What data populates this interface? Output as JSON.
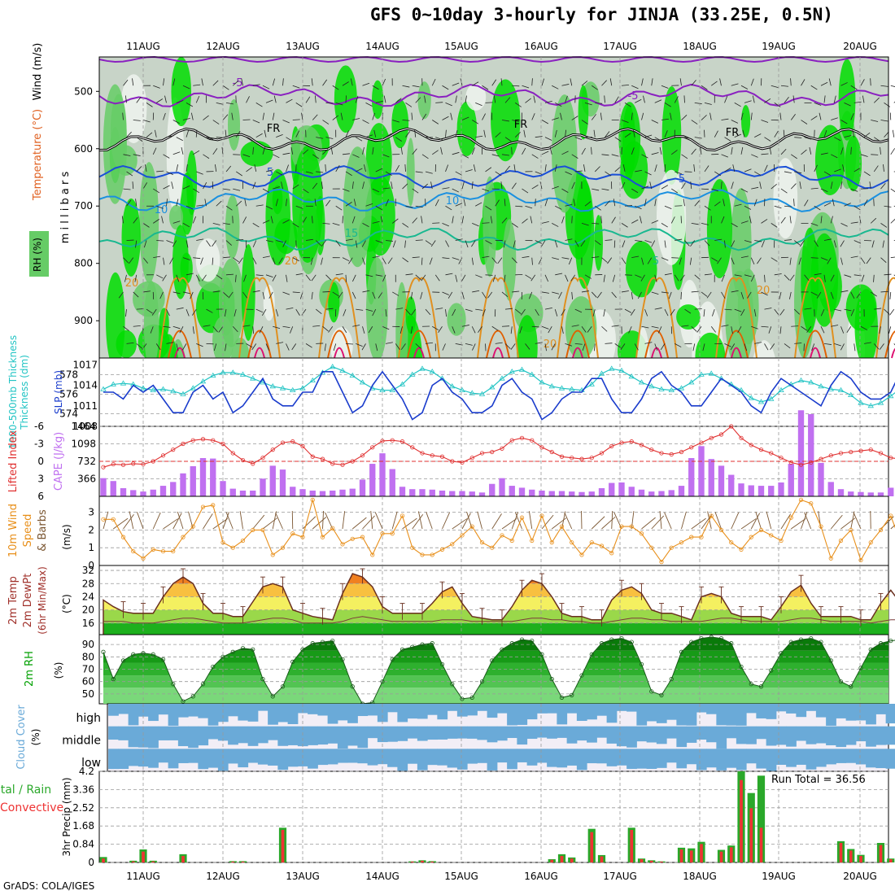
{
  "title": "GFS 0~10day 3-hourly for JINJA (33.25E, 0.5N)",
  "footer": "GrADS: COLA/IGES",
  "dates": [
    "11AUG",
    "12AUG",
    "13AUG",
    "14AUG",
    "15AUG",
    "16AUG",
    "17AUG",
    "18AUG",
    "19AUG",
    "20AUG"
  ],
  "colors": {
    "rh_green": "#00dd00",
    "rh_mid": "#66cc66",
    "rh_light": "#c8d4c8",
    "slp": "#1a3ccc",
    "thickness": "#22c4c4",
    "li": "#e03030",
    "cape": "#c070f0",
    "wind10": "#e88f1a",
    "barb": "#7a5530",
    "rh2m": "#00a000",
    "cloud": "#6aaad8",
    "cloud_clear": "#f2eef6",
    "precip_total": "#2aa82a",
    "precip_conv": "#ee3333"
  },
  "chart_data": [
    {
      "type": "heatmap",
      "panel": "upper-air",
      "ylabel": "(millibars)",
      "legend_labels": [
        "RH (%)",
        "Temperature (°C)",
        "Wind (m/s)"
      ],
      "ylim": [
        440,
        965
      ],
      "yticks": [
        500,
        600,
        700,
        800,
        900
      ],
      "contour_labels": [
        "-5",
        "FR",
        "5",
        "10",
        "15",
        "20"
      ],
      "isotherms": {
        "-5": 508,
        "FR": 585,
        "5": 650,
        "10": 690,
        "15": 757
      }
    },
    {
      "type": "line",
      "panel": "slp-thickness",
      "ylabel": "1000-500mb Thickness (dm)",
      "ylabel2": "SLP (mb)",
      "yticks_left": [
        574,
        576,
        578
      ],
      "yticks_right": [
        1008,
        1011,
        1014,
        1017
      ],
      "ylim_left": [
        572.7,
        579.7
      ],
      "ylim_right": [
        1008,
        1018
      ],
      "slp": [
        1013,
        1013,
        1012,
        1014,
        1013,
        1014,
        1012,
        1010,
        1010,
        1013,
        1014,
        1012,
        1013,
        1010,
        1011,
        1013,
        1015,
        1012,
        1011,
        1011,
        1013,
        1013,
        1016,
        1016,
        1013,
        1010,
        1011,
        1014,
        1016,
        1014,
        1012,
        1009,
        1010,
        1014,
        1015,
        1013,
        1012,
        1010,
        1010,
        1011,
        1014,
        1015,
        1013,
        1012,
        1009,
        1010,
        1012,
        1013,
        1013,
        1015,
        1015,
        1012,
        1010,
        1010,
        1012,
        1015,
        1016,
        1014,
        1013,
        1011,
        1011,
        1013,
        1015,
        1014,
        1013,
        1011,
        1010,
        1013,
        1015,
        1014,
        1013,
        1012,
        1011,
        1014,
        1016,
        1015,
        1013,
        1012,
        1012,
        1013,
        1016,
        1015,
        1014,
        1012,
        1013,
        1015,
        1017,
        1015,
        1013,
        1013,
        1014,
        1016,
        1017,
        1015,
        1014,
        1015,
        1016,
        1017
      ],
      "thickness": [
        576.5,
        577.0,
        577.1,
        577.0,
        576.6,
        576.4,
        576.5,
        576.3,
        576.0,
        576.6,
        577.3,
        577.9,
        578.2,
        578.2,
        578.0,
        577.6,
        577.2,
        576.8,
        576.6,
        576.4,
        576.6,
        577.4,
        578.2,
        578.8,
        578.4,
        577.9,
        577.2,
        576.6,
        576.4,
        576.4,
        577.0,
        578.0,
        578.6,
        578.3,
        577.6,
        576.8,
        576.4,
        576.1,
        576.0,
        576.7,
        577.6,
        578.3,
        578.5,
        578.0,
        577.2,
        576.8,
        576.6,
        576.5,
        576.4,
        577.0,
        578.1,
        578.6,
        578.4,
        577.8,
        577.2,
        576.8,
        576.5,
        576.4,
        576.6,
        577.2,
        578.0,
        578.1,
        577.6,
        577.0,
        576.4,
        575.6,
        575.2,
        575.5,
        576.4,
        577.0,
        577.4,
        577.2,
        576.8,
        576.5,
        576.4,
        575.9,
        575.1,
        574.8,
        575.1,
        575.8,
        576.6,
        577.0,
        576.6,
        575.8,
        575.1,
        574.5,
        574.2,
        574.1,
        574.3,
        574.8,
        575.3,
        575.8,
        575.9,
        575.6,
        575.0,
        574.2,
        573.6,
        573.2
      ]
    },
    {
      "type": "bar",
      "panel": "stability",
      "ylabel": "Lifted Index",
      "ylabel2": "CAPE (J/kg)",
      "yticks_left": [
        -6,
        -3,
        0,
        3,
        6
      ],
      "yticks_right": [
        366,
        732,
        1098,
        1464
      ],
      "ylim_left": [
        6,
        -6
      ],
      "ylim_right": [
        0,
        1464
      ],
      "cape": [
        380,
        320,
        170,
        130,
        100,
        140,
        220,
        300,
        480,
        630,
        800,
        790,
        320,
        160,
        120,
        120,
        370,
        640,
        560,
        200,
        150,
        120,
        110,
        120,
        140,
        160,
        350,
        680,
        900,
        570,
        200,
        150,
        150,
        140,
        120,
        110,
        110,
        100,
        80,
        260,
        380,
        220,
        180,
        140,
        120,
        110,
        110,
        100,
        90,
        100,
        170,
        280,
        290,
        200,
        140,
        100,
        110,
        130,
        220,
        800,
        1050,
        780,
        640,
        450,
        270,
        230,
        220,
        220,
        290,
        680,
        1800,
        1720,
        700,
        300,
        150,
        100,
        90,
        80,
        80,
        180,
        280,
        360,
        360,
        300,
        280,
        260,
        210,
        160,
        230,
        300,
        250,
        210,
        180,
        230,
        200,
        130,
        180,
        210
      ],
      "li": [
        1.0,
        0.5,
        0.6,
        0.4,
        0.5,
        0.0,
        -1.0,
        -2.0,
        -3.0,
        -3.6,
        -3.8,
        -3.6,
        -3.0,
        -1.4,
        -0.2,
        0.4,
        -0.6,
        -2.0,
        -3.2,
        -3.4,
        -2.6,
        -0.8,
        -0.4,
        0.4,
        0.6,
        0.0,
        -1.0,
        -2.4,
        -3.5,
        -3.6,
        -3.4,
        -2.4,
        -1.4,
        -1.0,
        -0.8,
        0.0,
        0.2,
        -0.6,
        -1.4,
        -1.6,
        -2.2,
        -3.6,
        -4.0,
        -3.6,
        -2.4,
        -1.6,
        -0.8,
        -0.6,
        -0.4,
        -0.6,
        -1.4,
        -2.6,
        -3.2,
        -3.4,
        -2.8,
        -2.0,
        -1.4,
        -1.2,
        -1.6,
        -2.4,
        -3.2,
        -4.0,
        -4.6,
        -6.0,
        -4.0,
        -2.8,
        -2.0,
        -1.4,
        -0.6,
        0.2,
        0.6,
        0.2,
        -0.4,
        -1.0,
        -1.4,
        -1.6,
        -1.8,
        -2.0,
        -1.4,
        -0.6,
        -0.4,
        -0.2,
        -0.8,
        -1.6,
        -2.2,
        -2.6,
        -2.4,
        -2.0,
        -1.6,
        -1.4,
        -1.2,
        -1.4,
        -1.8,
        -2.2,
        -1.4,
        -0.6,
        -1.6,
        -1.8
      ]
    },
    {
      "type": "line",
      "panel": "wind10m",
      "ylabel": "10m Wind Speed & Barbs (m/s)",
      "yticks": [
        0,
        1,
        2,
        3
      ],
      "ylim": [
        0,
        3.9
      ],
      "speed": [
        2.6,
        2.6,
        1.6,
        0.8,
        0.4,
        0.9,
        0.8,
        0.8,
        1.6,
        2.2,
        3.3,
        3.4,
        1.3,
        1.0,
        1.4,
        2.0,
        2.0,
        0.6,
        1.0,
        1.8,
        1.6,
        3.7,
        1.6,
        2.1,
        1.2,
        1.5,
        1.6,
        0.6,
        1.8,
        1.8,
        2.8,
        1.0,
        0.6,
        0.6,
        0.9,
        1.2,
        1.7,
        2.2,
        1.3,
        1.0,
        1.7,
        1.4,
        2.7,
        1.4,
        2.8,
        1.3,
        2.2,
        1.3,
        0.6,
        1.3,
        1.1,
        0.7,
        2.2,
        2.2,
        1.8,
        1.0,
        0.2,
        1.0,
        1.3,
        1.6,
        1.6,
        2.8,
        2.0,
        1.3,
        0.9,
        1.6,
        2.0,
        1.7,
        1.4,
        2.7,
        3.7,
        3.5,
        2.2,
        0.4,
        1.4,
        2.0,
        0.3,
        1.3,
        2.0,
        2.8,
        1.3,
        1.5,
        2.0,
        1.1,
        0.5,
        0.8,
        1.3,
        1.6,
        3.3,
        3.5,
        1.6,
        1.2,
        2.2,
        2.1,
        0.2,
        1.6,
        1.6,
        2.0
      ]
    },
    {
      "type": "area",
      "panel": "temperature",
      "ylabel": "2m Temp 2m DewPt (6hr Min/Max) (°C)",
      "yticks": [
        16,
        20,
        24,
        28,
        32
      ],
      "ylim": [
        12.5,
        33.5
      ],
      "temp": [
        23,
        21,
        19.5,
        19,
        19,
        19,
        24,
        28,
        30,
        28,
        22,
        19,
        19,
        18,
        18,
        22.5,
        27,
        28,
        27,
        20,
        19,
        18,
        17.5,
        17,
        25,
        31,
        30,
        27,
        21,
        19,
        19,
        19,
        19,
        22,
        25.5,
        27,
        22,
        18,
        17.5,
        17,
        17,
        21,
        26,
        29,
        28,
        24,
        19,
        18,
        18,
        17,
        17,
        23,
        26,
        27,
        25,
        20,
        19,
        19,
        18,
        17,
        24,
        25,
        24,
        19,
        18,
        18,
        18,
        17,
        21,
        25.5,
        27.5,
        22,
        18,
        18,
        18,
        18,
        17,
        17,
        22,
        26,
        22,
        18,
        18,
        18,
        17,
        17,
        23,
        25.5,
        25,
        20,
        19,
        18,
        18,
        18,
        17,
        20,
        22,
        20.5,
        19,
        18.5,
        18,
        17,
        19
      ],
      "dewpt": [
        16.5,
        16.5,
        16.5,
        16,
        16,
        16,
        16.5,
        17,
        17.5,
        17.5,
        17,
        16.5,
        16,
        16,
        16,
        16.5,
        17,
        17.5,
        17.5,
        17,
        16,
        16,
        16,
        16,
        16.5,
        17.5,
        18,
        17.5,
        17,
        16.5,
        16.5,
        16.5,
        16.5,
        16.5,
        17,
        17,
        17,
        16.5,
        16.5,
        16.5,
        16.5,
        16.5,
        17,
        17.5,
        17.5,
        17,
        17,
        16.5,
        16.5,
        16,
        16,
        16.5,
        17,
        17.5,
        17.5,
        17,
        17,
        16.5,
        16.5,
        16.5,
        16.5,
        17,
        17.5,
        17.5,
        17,
        16.5,
        16.5,
        16.5,
        16.5,
        17,
        17.5,
        17.5,
        17,
        16.5,
        16.5,
        16.5,
        16.5,
        16,
        16.5,
        17,
        17,
        17,
        16.5,
        16.5,
        16.5,
        16.5,
        16.5,
        17,
        17,
        17,
        16.5,
        16.5,
        16.5,
        16.5,
        16.5,
        16.5,
        16.5,
        16.5
      ]
    },
    {
      "type": "area",
      "panel": "rh2m",
      "ylabel": "2m RH (%)",
      "yticks": [
        50,
        60,
        70,
        80,
        90
      ],
      "ylim": [
        42,
        98
      ],
      "rh": [
        84,
        62,
        77,
        82,
        83,
        82,
        78,
        58,
        44,
        48,
        58,
        72,
        80,
        84,
        87,
        86,
        62,
        48,
        56,
        76,
        86,
        91,
        92,
        93,
        78,
        56,
        42,
        43,
        60,
        78,
        86,
        88,
        90,
        91,
        74,
        58,
        46,
        47,
        60,
        77,
        86,
        91,
        94,
        93,
        82,
        62,
        47,
        49,
        65,
        82,
        91,
        94,
        95,
        92,
        74,
        52,
        49,
        62,
        84,
        92,
        95,
        96,
        95,
        91,
        72,
        58,
        56,
        69,
        83,
        92,
        94,
        95,
        92,
        77,
        60,
        56,
        71,
        86,
        91,
        93,
        94,
        91,
        78,
        58,
        52,
        63,
        83,
        88,
        91,
        92,
        93,
        80,
        68,
        70,
        78,
        84,
        88,
        91,
        93,
        96,
        90
      ]
    },
    {
      "type": "bar",
      "panel": "cloud",
      "ylabel": "Cloud Cover (%)",
      "categories": [
        "high",
        "middle",
        "low"
      ]
    },
    {
      "type": "bar",
      "panel": "precip",
      "ylabel": "3hr Precip (mm)",
      "legend_labels": [
        "Total / Rain",
        "Convective"
      ],
      "yticks": [
        0,
        0.84,
        1.68,
        2.52,
        3.36,
        4.2
      ],
      "ylim": [
        0,
        4.2
      ],
      "run_total_label": "Run Total = 36.56",
      "total": [
        0.25,
        0,
        0,
        0.08,
        0.6,
        0.08,
        0,
        0,
        0.38,
        0,
        0,
        0,
        0,
        0.06,
        0.06,
        0,
        0,
        0,
        1.6,
        0,
        0,
        0,
        0,
        0,
        0,
        0,
        0,
        0,
        0,
        0,
        0,
        0.05,
        0.1,
        0.06,
        0,
        0,
        0,
        0,
        0,
        0,
        0,
        0,
        0,
        0,
        0,
        0.15,
        0.38,
        0.23,
        0,
        1.55,
        0.34,
        0,
        0,
        1.6,
        0.18,
        0.1,
        0.05,
        0,
        0.68,
        0.65,
        0.95,
        0,
        0.58,
        0.78,
        4.2,
        3.2,
        4.0,
        0,
        0,
        0,
        0,
        0,
        0,
        0,
        0.98,
        0.62,
        0.35,
        0,
        0.9,
        0.18,
        0.05,
        0,
        0,
        0,
        0,
        1.75,
        0,
        0.16,
        0.05,
        0,
        0,
        0,
        0.18,
        0.22,
        1.7,
        3.4,
        2.4,
        0.35,
        0,
        0,
        0,
        0.18,
        2.25
      ],
      "convective": [
        0.18,
        0,
        0,
        0.05,
        0.5,
        0.05,
        0,
        0,
        0.3,
        0,
        0,
        0,
        0,
        0.04,
        0.04,
        0,
        0,
        0,
        1.5,
        0,
        0,
        0,
        0,
        0,
        0,
        0,
        0,
        0,
        0,
        0,
        0,
        0.04,
        0.08,
        0.04,
        0,
        0,
        0,
        0,
        0,
        0,
        0,
        0,
        0,
        0,
        0,
        0.12,
        0.3,
        0.18,
        0,
        1.4,
        0.28,
        0,
        0,
        1.5,
        0.15,
        0.08,
        0.04,
        0,
        0.6,
        0.55,
        0.85,
        0,
        0.5,
        0.7,
        3.8,
        2.5,
        1.6,
        0,
        0,
        0,
        0,
        0,
        0,
        0,
        0.9,
        0.55,
        0.3,
        0,
        0.8,
        0.15,
        0.04,
        0,
        0,
        0,
        0,
        1.6,
        0,
        0.12,
        0.04,
        0,
        0,
        0,
        0.15,
        0.18,
        1.5,
        3.2,
        2.3,
        0.3,
        0,
        0,
        0,
        0.15,
        2.1
      ]
    }
  ]
}
